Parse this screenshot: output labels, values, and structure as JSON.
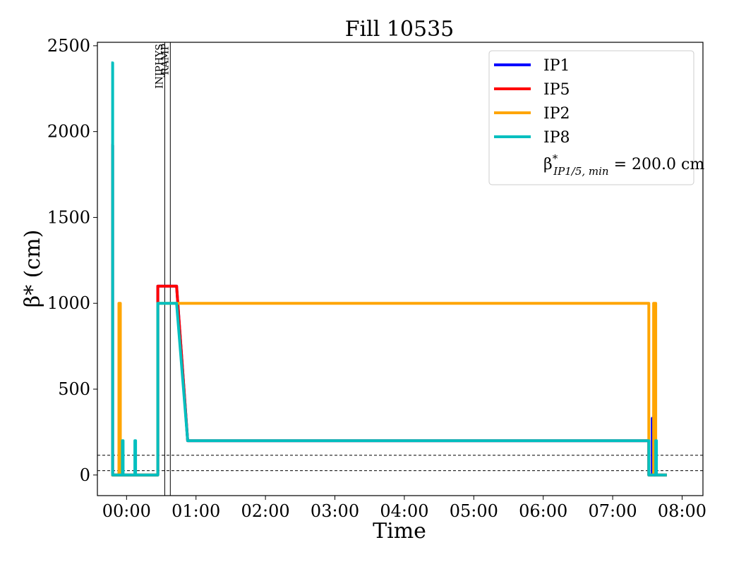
{
  "chart_data": {
    "type": "line",
    "title": "Fill 10535",
    "xlabel": "Time",
    "ylabel": "β* (cm)",
    "x_unit": "hours",
    "xlim": [
      -0.42,
      8.3
    ],
    "ylim": [
      -120,
      2520
    ],
    "x_ticks": [
      {
        "value": 0,
        "label": "00:00"
      },
      {
        "value": 1,
        "label": "01:00"
      },
      {
        "value": 2,
        "label": "02:00"
      },
      {
        "value": 3,
        "label": "03:00"
      },
      {
        "value": 4,
        "label": "04:00"
      },
      {
        "value": 5,
        "label": "05:00"
      },
      {
        "value": 6,
        "label": "06:00"
      },
      {
        "value": 7,
        "label": "07:00"
      },
      {
        "value": 8,
        "label": "08:00"
      }
    ],
    "y_ticks": [
      {
        "value": 0,
        "label": "0"
      },
      {
        "value": 500,
        "label": "500"
      },
      {
        "value": 1000,
        "label": "1000"
      },
      {
        "value": 1500,
        "label": "1500"
      },
      {
        "value": 2000,
        "label": "2000"
      },
      {
        "value": 2500,
        "label": "2500"
      }
    ],
    "legend_position": "top-right",
    "grid": false,
    "events": [
      {
        "label": "INJPHYS",
        "x": 0.55
      },
      {
        "label": "RAMP",
        "x": 0.63
      }
    ],
    "reference_lines": [
      {
        "y": 115,
        "style": "dashed"
      },
      {
        "y": 25,
        "style": "dashed"
      }
    ],
    "legend_extra": {
      "text": "β*IP1/5, min = 200.0 cm",
      "main": "β",
      "sup": "*",
      "sub": "IP1/5, min",
      "rest": " = 200.0 cm"
    },
    "series": [
      {
        "name": "IP1",
        "color": "#0000ff",
        "x": [
          -0.22,
          -0.22,
          -0.2,
          -0.2,
          0.45,
          0.45,
          0.72,
          0.88,
          7.52,
          7.52,
          7.57,
          7.57,
          7.59,
          7.59,
          7.78
        ],
        "y": [
          1920,
          1920,
          1920,
          0,
          0,
          1100,
          1100,
          200,
          200,
          0,
          0,
          330,
          330,
          0,
          0
        ]
      },
      {
        "name": "IP5",
        "color": "#ff0000",
        "x": [
          -0.22,
          -0.22,
          -0.2,
          -0.2,
          0.45,
          0.45,
          0.72,
          0.88,
          7.52,
          7.52,
          7.78
        ],
        "y": [
          1920,
          1920,
          1920,
          0,
          0,
          1100,
          1100,
          200,
          200,
          0,
          0
        ]
      },
      {
        "name": "IP2",
        "color": "#ffa500",
        "x": [
          -0.22,
          -0.22,
          -0.11,
          -0.11,
          -0.09,
          -0.09,
          0.45,
          0.45,
          7.52,
          7.52,
          7.59,
          7.59,
          7.62,
          7.62,
          7.78
        ],
        "y": [
          0,
          0,
          0,
          1000,
          1000,
          0,
          0,
          1000,
          1000,
          0,
          0,
          1000,
          1000,
          0,
          0
        ]
      },
      {
        "name": "IP8",
        "color": "#00bfbf",
        "x": [
          -0.22,
          -0.22,
          -0.2,
          -0.2,
          -0.06,
          -0.06,
          -0.05,
          -0.05,
          0.12,
          0.12,
          0.13,
          0.13,
          0.45,
          0.45,
          0.72,
          0.88,
          7.52,
          7.52,
          7.62,
          7.62,
          7.63,
          7.63,
          7.78
        ],
        "y": [
          2400,
          2400,
          2400,
          0,
          0,
          200,
          200,
          0,
          0,
          200,
          200,
          0,
          0,
          1000,
          1000,
          200,
          200,
          0,
          0,
          200,
          200,
          0,
          0
        ]
      }
    ]
  }
}
